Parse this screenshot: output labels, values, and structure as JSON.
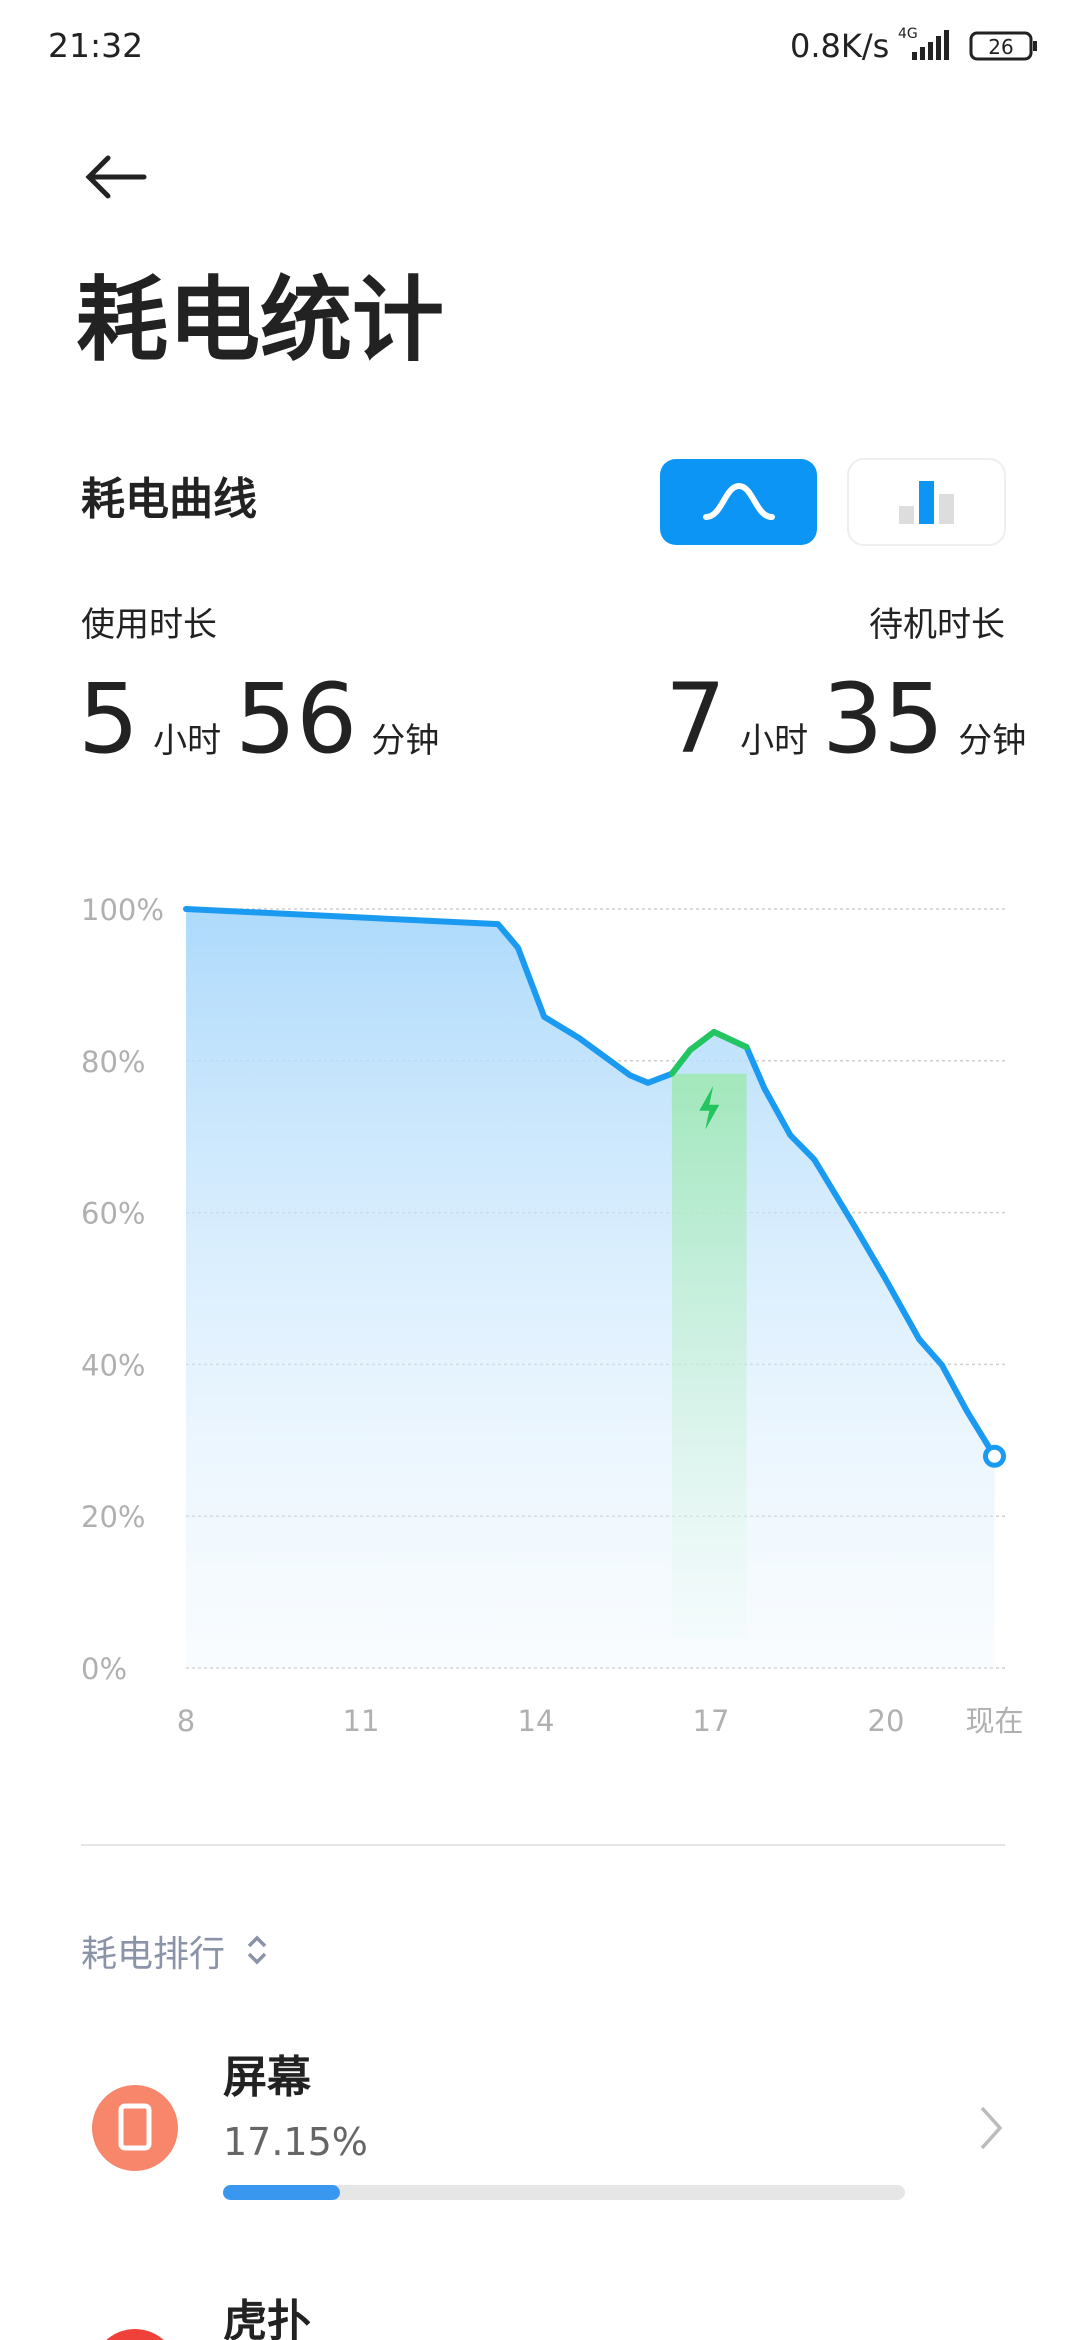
{
  "status_bar": {
    "time": "21:32",
    "speed": "0.8K/s",
    "network": "4G",
    "battery": "26"
  },
  "header": {
    "title": "耗电统计"
  },
  "section": {
    "title": "耗电曲线"
  },
  "usage": {
    "label": "使用时长",
    "hours": "5",
    "hours_unit": "小时",
    "minutes": "56",
    "minutes_unit": "分钟"
  },
  "standby": {
    "label": "待机时长",
    "hours": "7",
    "hours_unit": "小时",
    "minutes": "35",
    "minutes_unit": "分钟"
  },
  "chart_data": {
    "type": "line",
    "x": [
      8,
      13.35,
      13.69,
      14.14,
      14.74,
      15.61,
      15.92,
      16.33,
      16.64,
      17.05,
      17.61,
      17.92,
      18.36,
      18.77,
      19.47,
      19.98,
      20.57,
      20.96,
      21.39,
      21.86
    ],
    "series": [
      {
        "color": "#1a9af0",
        "values": [
          100,
          98,
          94.9,
          85.8,
          83,
          78.1,
          77.1,
          78.3,
          81.4,
          83.8,
          81.8,
          76.3,
          70.2,
          67,
          58.1,
          51.4,
          43.3,
          39.9,
          33.8,
          27.9
        ]
      },
      {
        "color": "#22c55e",
        "values": [
          null,
          null,
          null,
          null,
          null,
          null,
          null,
          78.3,
          81.4,
          83.8,
          81.8,
          null,
          null,
          null,
          null,
          null,
          null,
          null,
          null,
          null
        ]
      }
    ],
    "xlim": [
      8,
      21.86
    ],
    "xticks": [
      8,
      11,
      14,
      17,
      20,
      {
        "value": 21.86,
        "label": "现在"
      }
    ],
    "ylim": [
      0,
      100
    ],
    "yticks": [
      {
        "value": 0,
        "label": "0%"
      },
      {
        "value": 20,
        "label": "20%"
      },
      {
        "value": 40,
        "label": "40%"
      },
      {
        "value": 60,
        "label": "60%"
      },
      {
        "value": 80,
        "label": "80%"
      },
      {
        "value": 100,
        "label": "100%"
      }
    ],
    "grid": true
  },
  "ranking": {
    "title": "耗电排行",
    "items": [
      {
        "name": "屏幕",
        "percent": {
          "value": 17.15,
          "label": "17.15%"
        }
      },
      {
        "name": "虎扑"
      }
    ]
  }
}
